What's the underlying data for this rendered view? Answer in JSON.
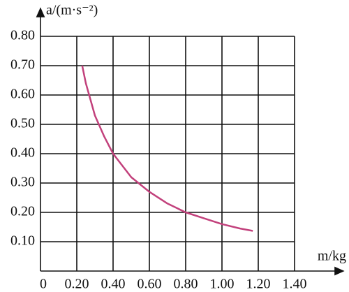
{
  "chart_data": {
    "type": "line",
    "ylabel": "a/(m·s⁻²)",
    "xlabel": "m/kg",
    "x": [
      0.23,
      0.25,
      0.3,
      0.35,
      0.4,
      0.5,
      0.6,
      0.7,
      0.8,
      0.9,
      1.0,
      1.1,
      1.17
    ],
    "series": [
      {
        "color": "#c2417c",
        "values": [
          0.7,
          0.64,
          0.53,
          0.46,
          0.4,
          0.32,
          0.27,
          0.23,
          0.2,
          0.18,
          0.16,
          0.145,
          0.137
        ]
      }
    ],
    "xlim": [
      0,
      1.4
    ],
    "ylim": [
      0,
      0.8
    ],
    "xticks": [
      0,
      {
        "value": 0.2,
        "label": "0.20"
      },
      {
        "value": 0.4,
        "label": "0.40"
      },
      {
        "value": 0.6,
        "label": "0.60"
      },
      {
        "value": 0.8,
        "label": "0.80"
      },
      {
        "value": 1.0,
        "label": "1.00"
      },
      {
        "value": 1.2,
        "label": "1.20"
      },
      {
        "value": 1.4,
        "label": "1.40"
      }
    ],
    "yticks": [
      {
        "value": 0.1,
        "label": "0.10"
      },
      {
        "value": 0.2,
        "label": "0.20"
      },
      {
        "value": 0.3,
        "label": "0.30"
      },
      {
        "value": 0.4,
        "label": "0.40"
      },
      {
        "value": 0.5,
        "label": "0.50"
      },
      {
        "value": 0.6,
        "label": "0.60"
      },
      {
        "value": 0.7,
        "label": "0.70"
      },
      {
        "value": 0.8,
        "label": "0.80"
      }
    ],
    "grid": true
  }
}
